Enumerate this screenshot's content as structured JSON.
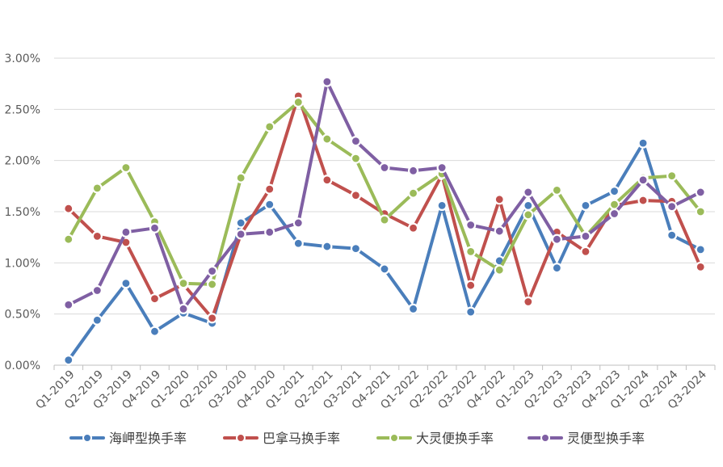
{
  "chart_data": {
    "type": "line",
    "title": "",
    "xlabel": "",
    "ylabel": "",
    "ylim": [
      0,
      3.0
    ],
    "yticks": [
      "0.00%",
      "0.50%",
      "1.00%",
      "1.50%",
      "2.00%",
      "2.50%",
      "3.00%"
    ],
    "grid": "horizontal",
    "legend_position": "bottom",
    "categories": [
      "Q1-2019",
      "Q2-2019",
      "Q3-2019",
      "Q4-2019",
      "Q1-2020",
      "Q2-2020",
      "Q3-2020",
      "Q4-2020",
      "Q1-2021",
      "Q2-2021",
      "Q3-2021",
      "Q4-2021",
      "Q1-2022",
      "Q2-2022",
      "Q3-2022",
      "Q4-2022",
      "Q1-2023",
      "Q2-2023",
      "Q3-2023",
      "Q4-2023",
      "Q1-2024",
      "Q2-2024",
      "Q3-2024"
    ],
    "series": [
      {
        "name": "海岬型换手率",
        "color": "#4a7ebb",
        "values": [
          0.05,
          0.44,
          0.8,
          0.33,
          0.51,
          0.41,
          1.39,
          1.57,
          1.19,
          1.16,
          1.14,
          0.94,
          0.55,
          1.56,
          0.52,
          1.02,
          1.56,
          0.95,
          1.56,
          1.7,
          2.17,
          1.27,
          1.13
        ]
      },
      {
        "name": "巴拿马换手率",
        "color": "#c0504d",
        "values": [
          1.53,
          1.26,
          1.2,
          0.65,
          0.79,
          0.46,
          1.28,
          1.72,
          2.63,
          1.81,
          1.66,
          1.48,
          1.34,
          1.86,
          0.78,
          1.62,
          0.62,
          1.3,
          1.11,
          1.56,
          1.61,
          1.6,
          0.96
        ]
      },
      {
        "name": "大灵便换手率",
        "color": "#9bbb59",
        "values": [
          1.23,
          1.73,
          1.93,
          1.4,
          0.8,
          0.79,
          1.83,
          2.33,
          2.57,
          2.21,
          2.02,
          1.42,
          1.68,
          1.87,
          1.11,
          0.93,
          1.47,
          1.71,
          1.26,
          1.57,
          1.83,
          1.85,
          1.5
        ]
      },
      {
        "name": "灵便型换手率",
        "color": "#7f5fa3",
        "values": [
          0.59,
          0.73,
          1.3,
          1.34,
          0.55,
          0.92,
          1.28,
          1.3,
          1.39,
          2.77,
          2.19,
          1.93,
          1.9,
          1.93,
          1.37,
          1.31,
          1.69,
          1.23,
          1.26,
          1.48,
          1.81,
          1.55,
          1.69
        ]
      }
    ]
  }
}
